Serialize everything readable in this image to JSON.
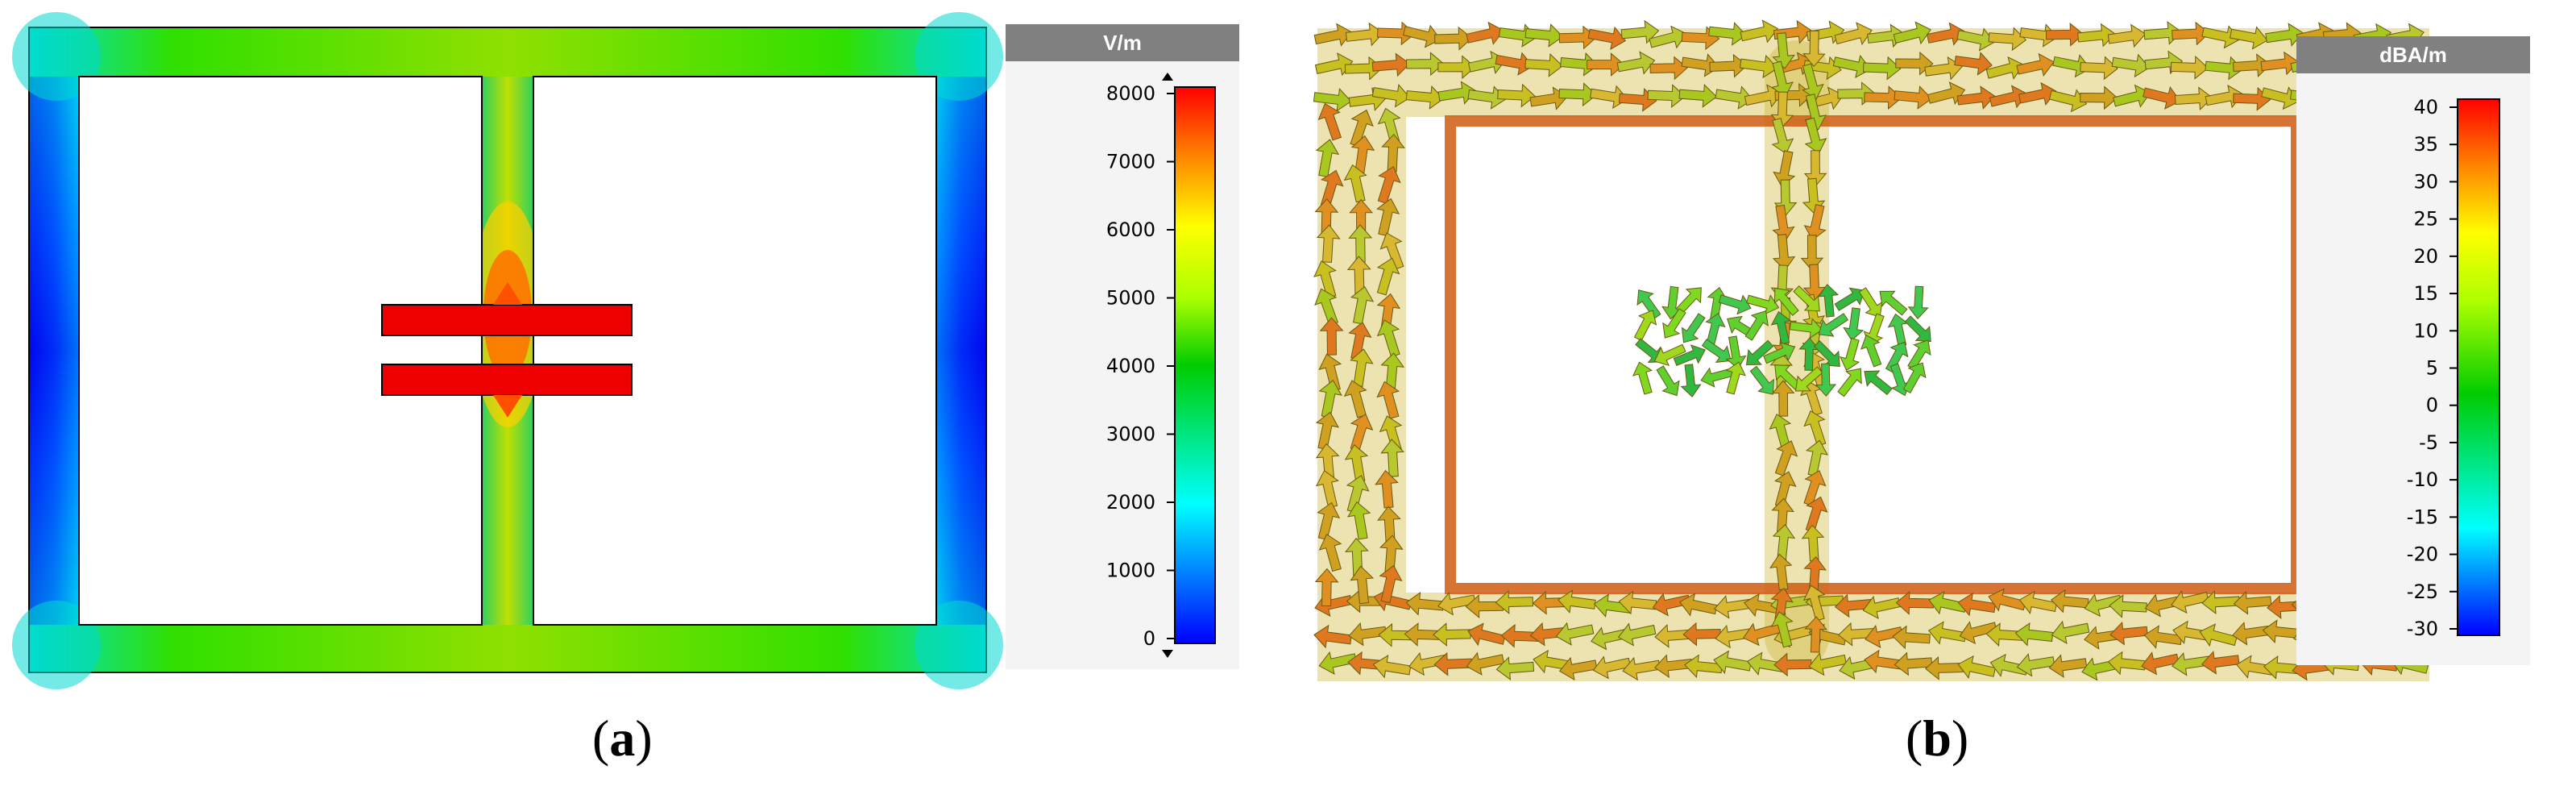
{
  "panel_a": {
    "caption_open": "(",
    "caption_letter": "a",
    "caption_close": ")",
    "legend": {
      "unit": "V/m",
      "min": 0,
      "max": 8000,
      "ticks": [
        "8000",
        "7000",
        "6000",
        "5000",
        "4000",
        "3000",
        "2000",
        "1000",
        "0"
      ]
    }
  },
  "panel_b": {
    "caption_open": "(",
    "caption_letter": "b",
    "caption_close": ")",
    "legend": {
      "unit": "dBA/m",
      "min": -30,
      "max": 40,
      "ticks": [
        "40",
        "35",
        "30",
        "25",
        "20",
        "15",
        "10",
        "5",
        "0",
        "-5",
        "-10",
        "-15",
        "-20",
        "-25",
        "-30"
      ]
    }
  },
  "colors": {
    "scale_low": "#0000ff",
    "scale_cyan": "#00ffff",
    "scale_green": "#00cc00",
    "scale_yellow": "#ffff00",
    "scale_high": "#ff0000",
    "legend_header": "#808080"
  }
}
